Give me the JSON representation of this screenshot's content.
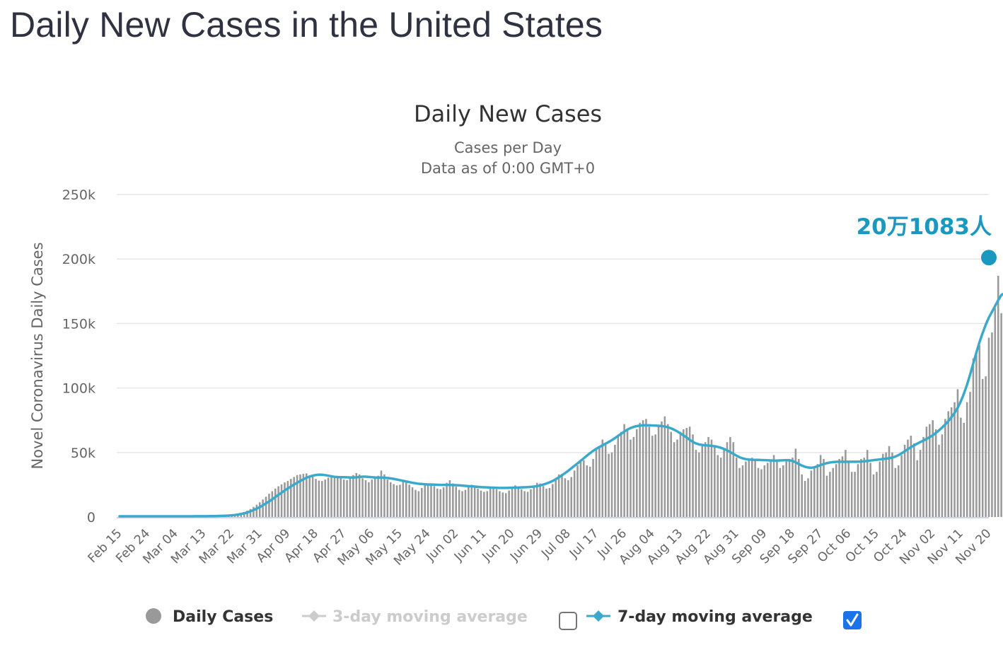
{
  "page": {
    "title": "Daily New Cases in the United States"
  },
  "colors": {
    "bar": "#999999",
    "line": "#3ba9cb",
    "annotation": "#1a98c0",
    "grid": "#e6e6e6",
    "axis": "#ccd6eb",
    "legend_inactive": "#cccccc",
    "legend_active": "#333333",
    "checkbox_checked": "#1a73e8"
  },
  "chart_data": {
    "type": "bar",
    "title": "Daily New Cases",
    "subtitle_lines": [
      "Cases per Day",
      "Data as of 0:00 GMT+0"
    ],
    "ylabel": "Novel Coronavirus Daily Cases",
    "xlabel": "",
    "ylim": [
      0,
      250000
    ],
    "yticks": [
      0,
      50000,
      100000,
      150000,
      200000,
      250000
    ],
    "ytick_labels": [
      "0",
      "50k",
      "100k",
      "150k",
      "200k",
      "250k"
    ],
    "grid": true,
    "start_date": "Feb 15",
    "end_date": "Nov 20",
    "num_days": 280,
    "xtick_labels": [
      "Feb 15",
      "Feb 24",
      "Mar 04",
      "Mar 13",
      "Mar 22",
      "Mar 31",
      "Apr 09",
      "Apr 18",
      "Apr 27",
      "May 06",
      "May 15",
      "May 24",
      "Jun 02",
      "Jun 11",
      "Jun 20",
      "Jun 29",
      "Jul 08",
      "Jul 17",
      "Jul 26",
      "Aug 04",
      "Aug 13",
      "Aug 22",
      "Aug 31",
      "Sep 09",
      "Sep 18",
      "Sep 27",
      "Oct 06",
      "Oct 15",
      "Oct 24",
      "Nov 02",
      "Nov 11",
      "Nov 20"
    ],
    "xtick_every_days": 9,
    "series": [
      {
        "name": "Daily Cases",
        "kind": "bar",
        "values": [
          0,
          0,
          0,
          0,
          0,
          0,
          0,
          0,
          0,
          0,
          0,
          0,
          0,
          0,
          0,
          0,
          0,
          0,
          20,
          20,
          20,
          30,
          30,
          40,
          50,
          60,
          70,
          90,
          110,
          140,
          180,
          260,
          340,
          460,
          600,
          800,
          1100,
          1600,
          2200,
          2900,
          3800,
          4900,
          6200,
          7800,
          9500,
          11400,
          13500,
          15700,
          18000,
          20000,
          22000,
          23800,
          25300,
          26800,
          28000,
          29500,
          31000,
          32500,
          33000,
          33500,
          33800,
          32000,
          31200,
          29500,
          28200,
          27900,
          29000,
          30500,
          31500,
          32000,
          31000,
          30200,
          29000,
          28500,
          31000,
          32500,
          34000,
          33000,
          30000,
          28500,
          27000,
          29000,
          31000,
          32000,
          36000,
          33000,
          29000,
          27000,
          25500,
          24500,
          25000,
          27500,
          28000,
          25000,
          23000,
          21000,
          20000,
          22500,
          25000,
          26000,
          25500,
          24000,
          22000,
          21500,
          23000,
          26500,
          28500,
          26000,
          23500,
          21000,
          20000,
          21000,
          23500,
          25000,
          24000,
          22000,
          20500,
          19500,
          20000,
          22000,
          23000,
          21500,
          20000,
          19000,
          18500,
          20500,
          23000,
          24500,
          23500,
          21500,
          20000,
          19500,
          21500,
          24000,
          26500,
          26000,
          24000,
          22000,
          22500,
          25500,
          29000,
          33000,
          33500,
          30000,
          28500,
          31000,
          36000,
          40000,
          44000,
          44000,
          40000,
          39000,
          45000,
          52000,
          55000,
          60000,
          56000,
          49000,
          50000,
          56000,
          62000,
          66000,
          72000,
          68000,
          60000,
          62000,
          68000,
          73000,
          75000,
          76000,
          70000,
          63000,
          64000,
          70000,
          74000,
          78000,
          72000,
          66000,
          58000,
          60000,
          66000,
          68000,
          69000,
          70000,
          64000,
          52000,
          50000,
          55000,
          58000,
          62000,
          60000,
          54000,
          48000,
          46000,
          52000,
          58000,
          62000,
          58000,
          46000,
          38000,
          40000,
          43000,
          45000,
          46000,
          44000,
          38000,
          37000,
          40000,
          42000,
          44000,
          48000,
          44000,
          38000,
          40000,
          43000,
          45000,
          46000,
          53000,
          45000,
          33000,
          28000,
          30000,
          36000,
          39000,
          41000,
          48000,
          45000,
          32000,
          35000,
          38000,
          41000,
          45000,
          47000,
          52000,
          42000,
          35000,
          35000,
          41000,
          45000,
          46000,
          52000,
          42000,
          33000,
          35000,
          43000,
          49000,
          50000,
          55000,
          50000,
          38000,
          40000,
          48000,
          56000,
          60000,
          63000,
          57000,
          44000,
          52000,
          62000,
          70000,
          72000,
          75000,
          68000,
          56000,
          64000,
          76000,
          82000,
          85000,
          89000,
          99000,
          77000,
          73000,
          89000,
          97000,
          123000,
          126000,
          133000,
          107000,
          109000,
          139000,
          143000,
          162000,
          187000,
          158000,
          150000,
          146000,
          160000,
          177000,
          192000,
          201083
        ],
        "color": "#999999"
      },
      {
        "name": "3-day moving average",
        "kind": "line",
        "visible": false
      },
      {
        "name": "7-day moving average",
        "kind": "line",
        "visible": true,
        "values": [
          0,
          0,
          0,
          0,
          0,
          0,
          0,
          0,
          0,
          0,
          0,
          0,
          0,
          0,
          0,
          0,
          0,
          0,
          10,
          10,
          10,
          20,
          20,
          30,
          40,
          50,
          60,
          70,
          90,
          110,
          140,
          180,
          250,
          330,
          440,
          580,
          760,
          1000,
          1350,
          1800,
          2300,
          3000,
          3800,
          4800,
          5900,
          7100,
          8500,
          10000,
          11500,
          13200,
          14900,
          16600,
          18300,
          20000,
          21600,
          23100,
          24600,
          26000,
          27400,
          28700,
          29900,
          30800,
          31500,
          32000,
          32300,
          32200,
          31900,
          31500,
          31000,
          30600,
          30400,
          30300,
          30300,
          30200,
          30100,
          30100,
          30200,
          30500,
          30700,
          30700,
          30500,
          30300,
          30100,
          30000,
          30000,
          29900,
          29700,
          29400,
          29000,
          28500,
          28000,
          27500,
          27000,
          26500,
          26000,
          25600,
          25200,
          25000,
          24800,
          24700,
          24600,
          24500,
          24400,
          24300,
          24300,
          24300,
          24300,
          24200,
          24100,
          24000,
          23800,
          23600,
          23400,
          23200,
          23000,
          22800,
          22600,
          22500,
          22400,
          22300,
          22200,
          22100,
          22000,
          22000,
          22000,
          22100,
          22200,
          22200,
          22300,
          22400,
          22500,
          22600,
          22800,
          23000,
          23400,
          23900,
          24600,
          25400,
          26300,
          27400,
          28700,
          30200,
          31800,
          33500,
          35300,
          37200,
          39100,
          41000,
          43000,
          45000,
          47000,
          48900,
          50700,
          52300,
          53700,
          55000,
          56300,
          57600,
          59000,
          60600,
          62300,
          64000,
          65700,
          67200,
          68400,
          69300,
          69900,
          70300,
          70500,
          70600,
          70500,
          70400,
          70300,
          70200,
          70000,
          69600,
          69000,
          68200,
          67100,
          65800,
          64300,
          62700,
          61000,
          59300,
          57700,
          56500,
          55700,
          55300,
          55000,
          54800,
          54600,
          54300,
          53800,
          53100,
          52200,
          51100,
          49800,
          48400,
          47000,
          45800,
          44900,
          44300,
          44000,
          43800,
          43700,
          43700,
          43600,
          43500,
          43400,
          43300,
          43200,
          43200,
          43300,
          43400,
          43500,
          43400,
          42900,
          41800,
          40500,
          39300,
          38400,
          37800,
          37600,
          38000,
          38800,
          39700,
          40500,
          41200,
          41700,
          42000,
          42200,
          42300,
          42300,
          42300,
          42300,
          42300,
          42300,
          42300,
          42400,
          42600,
          42900,
          43200,
          43500,
          43800,
          44100,
          44400,
          44700,
          45000,
          45500,
          46300,
          47400,
          48800,
          50400,
          52000,
          53600,
          55000,
          56300,
          57500,
          58700,
          60000,
          61300,
          62800,
          64600,
          66600,
          68800,
          71200,
          73800,
          76800,
          80200,
          84200,
          89100,
          95100,
          102000,
          110000,
          118500,
          127000,
          135000,
          142000,
          148500,
          154000,
          158500,
          163000,
          167500,
          171500,
          173000
        ],
        "color": "#3ba9cb"
      }
    ],
    "annotation": {
      "label": "20万1083人",
      "value": 201083,
      "date": "Nov 20"
    },
    "legend": {
      "placement": "bottom-center",
      "items": [
        {
          "label": "Daily Cases",
          "marker": "circle",
          "active": true
        },
        {
          "label": "3-day moving average",
          "marker": "line-diamond",
          "active": false,
          "checkbox_checked": false
        },
        {
          "label": "7-day moving average",
          "marker": "line-diamond",
          "active": true,
          "checkbox_checked": true
        }
      ]
    }
  }
}
